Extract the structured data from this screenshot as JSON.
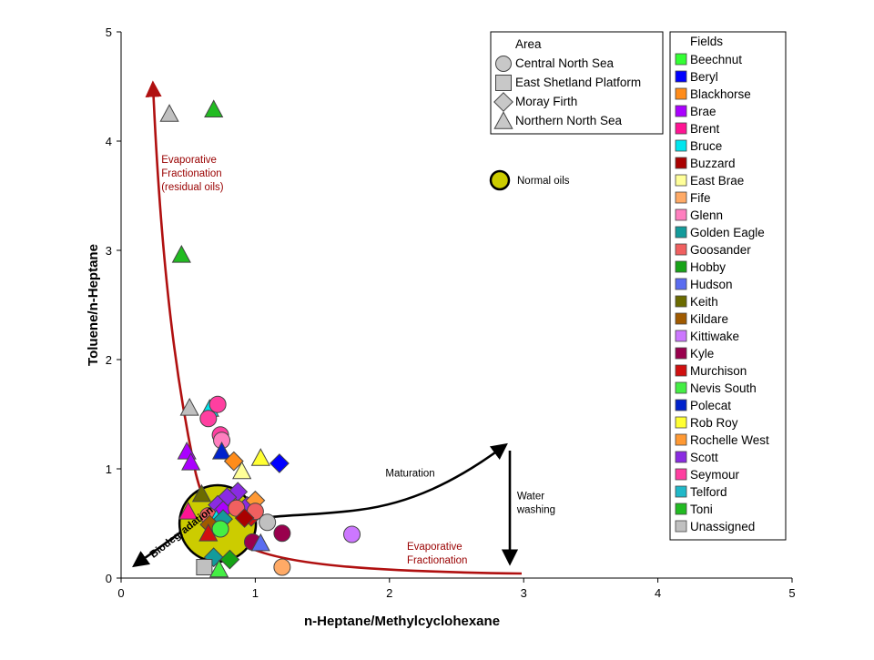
{
  "chart_data": {
    "type": "scatter",
    "xlabel": "n-Heptane/Methylcyclohexane",
    "ylabel": "Toluene/n-Heptane",
    "xlim": [
      0,
      5
    ],
    "ylim": [
      0,
      5
    ],
    "xticks": [
      "0",
      "1",
      "2",
      "3",
      "4",
      "5"
    ],
    "yticks": [
      "0",
      "1",
      "2",
      "3",
      "4",
      "5"
    ],
    "grid": false,
    "area_legend": {
      "title": "Area",
      "placement": "top-right",
      "entries": [
        {
          "label": "Central North Sea",
          "marker": "circle"
        },
        {
          "label": "East Shetland Platform",
          "marker": "square"
        },
        {
          "label": "Moray Firth",
          "marker": "diamond"
        },
        {
          "label": "Northern North Sea",
          "marker": "triangle"
        }
      ]
    },
    "field_legend": {
      "title": "Fields",
      "placement": "right",
      "entries": [
        {
          "label": "Beechnut",
          "color": "#33ff33"
        },
        {
          "label": "Beryl",
          "color": "#0000ff"
        },
        {
          "label": "Blackhorse",
          "color": "#ff8c1a"
        },
        {
          "label": "Brae",
          "color": "#aa00ff"
        },
        {
          "label": "Brent",
          "color": "#ff1493"
        },
        {
          "label": "Bruce",
          "color": "#00e5ee"
        },
        {
          "label": "Buzzard",
          "color": "#aa0000"
        },
        {
          "label": "East Brae",
          "color": "#ffff99"
        },
        {
          "label": "Fife",
          "color": "#ffaa66"
        },
        {
          "label": "Glenn",
          "color": "#ff7fbf"
        },
        {
          "label": "Golden Eagle",
          "color": "#139b9b"
        },
        {
          "label": "Goosander",
          "color": "#f06060"
        },
        {
          "label": "Hobby",
          "color": "#17a317"
        },
        {
          "label": "Hudson",
          "color": "#5a6cf0"
        },
        {
          "label": "Keith",
          "color": "#6b6b00"
        },
        {
          "label": "Kildare",
          "color": "#a05a00"
        },
        {
          "label": "Kittiwake",
          "color": "#cc77ff"
        },
        {
          "label": "Kyle",
          "color": "#99004d"
        },
        {
          "label": "Murchison",
          "color": "#d01010"
        },
        {
          "label": "Nevis South",
          "color": "#44ee44"
        },
        {
          "label": "Polecat",
          "color": "#0022cc"
        },
        {
          "label": "Rob Roy",
          "color": "#ffff33"
        },
        {
          "label": "Rochelle West",
          "color": "#ff9933"
        },
        {
          "label": "Scott",
          "color": "#8a2be2"
        },
        {
          "label": "Seymour",
          "color": "#ff3fa0"
        },
        {
          "label": "Telford",
          "color": "#20b8c8"
        },
        {
          "label": "Toni",
          "color": "#22bb22"
        },
        {
          "label": "Unassigned",
          "color": "#c0c0c0"
        }
      ]
    },
    "normal_oils": {
      "label": "Normal oils",
      "x": 0.72,
      "y": 0.5,
      "color": "#cccc00"
    },
    "annotations": [
      {
        "text": [
          "Evaporative",
          "Fractionation",
          "(residual oils)"
        ],
        "x": 0.3,
        "y": 3.8,
        "color": "#990000"
      },
      {
        "text": [
          "Evaporative",
          "Fractionation"
        ],
        "x": 2.13,
        "y": 0.26,
        "color": "#990000"
      },
      {
        "text": [
          "Maturation"
        ],
        "x": 1.97,
        "y": 0.93,
        "color": "#000000"
      },
      {
        "text": [
          "Water",
          "washing"
        ],
        "x": 2.95,
        "y": 0.72,
        "color": "#000000"
      },
      {
        "text": [
          "Biodegradation"
        ],
        "x": 0.24,
        "y": 0.18,
        "color": "#000000",
        "rotate": -38,
        "bold": true
      }
    ],
    "points": [
      {
        "x": 0.36,
        "y": 4.25,
        "marker": "triangle",
        "field": "Unassigned"
      },
      {
        "x": 0.69,
        "y": 4.29,
        "marker": "triangle",
        "field": "Toni"
      },
      {
        "x": 0.45,
        "y": 2.96,
        "marker": "triangle",
        "field": "Toni"
      },
      {
        "x": 0.51,
        "y": 1.56,
        "marker": "triangle",
        "field": "Unassigned"
      },
      {
        "x": 0.66,
        "y": 1.55,
        "marker": "triangle",
        "field": "Bruce"
      },
      {
        "x": 0.72,
        "y": 1.59,
        "marker": "circle",
        "field": "Seymour"
      },
      {
        "x": 0.65,
        "y": 1.46,
        "marker": "circle",
        "field": "Seymour"
      },
      {
        "x": 0.74,
        "y": 1.31,
        "marker": "circle",
        "field": "Seymour"
      },
      {
        "x": 0.75,
        "y": 1.26,
        "marker": "circle",
        "field": "Glenn"
      },
      {
        "x": 0.49,
        "y": 1.16,
        "marker": "triangle",
        "field": "Brae"
      },
      {
        "x": 0.52,
        "y": 1.06,
        "marker": "triangle",
        "field": "Brae"
      },
      {
        "x": 0.75,
        "y": 1.16,
        "marker": "triangle",
        "field": "Polecat"
      },
      {
        "x": 0.84,
        "y": 1.07,
        "marker": "diamond",
        "field": "Blackhorse"
      },
      {
        "x": 1.04,
        "y": 1.1,
        "marker": "triangle",
        "field": "Rob Roy"
      },
      {
        "x": 0.9,
        "y": 0.98,
        "marker": "triangle",
        "field": "East Brae"
      },
      {
        "x": 1.18,
        "y": 1.05,
        "marker": "diamond",
        "field": "Beryl"
      },
      {
        "x": 0.6,
        "y": 0.77,
        "marker": "triangle",
        "field": "Keith"
      },
      {
        "x": 0.87,
        "y": 0.79,
        "marker": "diamond",
        "field": "Scott"
      },
      {
        "x": 0.79,
        "y": 0.74,
        "marker": "diamond",
        "field": "Scott"
      },
      {
        "x": 0.72,
        "y": 0.67,
        "marker": "diamond",
        "field": "Scott"
      },
      {
        "x": 0.76,
        "y": 0.62,
        "marker": "diamond",
        "field": "Brae"
      },
      {
        "x": 0.94,
        "y": 0.66,
        "marker": "diamond",
        "field": "Scott"
      },
      {
        "x": 1.0,
        "y": 0.71,
        "marker": "diamond",
        "field": "Rochelle West"
      },
      {
        "x": 0.5,
        "y": 0.61,
        "marker": "triangle",
        "field": "Brent"
      },
      {
        "x": 0.65,
        "y": 0.57,
        "marker": "circle",
        "field": "Goosander"
      },
      {
        "x": 0.71,
        "y": 0.54,
        "marker": "triangle",
        "field": "Bruce"
      },
      {
        "x": 0.76,
        "y": 0.54,
        "marker": "diamond",
        "field": "Golden Eagle"
      },
      {
        "x": 0.86,
        "y": 0.64,
        "marker": "circle",
        "field": "Goosander"
      },
      {
        "x": 0.97,
        "y": 0.56,
        "marker": "diamond",
        "field": "Murchison"
      },
      {
        "x": 1.0,
        "y": 0.61,
        "marker": "circle",
        "field": "Goosander"
      },
      {
        "x": 0.92,
        "y": 0.55,
        "marker": "diamond",
        "field": "Buzzard"
      },
      {
        "x": 1.09,
        "y": 0.51,
        "marker": "circle",
        "field": "Unassigned"
      },
      {
        "x": 1.2,
        "y": 0.41,
        "marker": "circle",
        "field": "Kyle"
      },
      {
        "x": 1.72,
        "y": 0.4,
        "marker": "circle",
        "field": "Kittiwake"
      },
      {
        "x": 0.66,
        "y": 0.49,
        "marker": "diamond",
        "field": "Kildare"
      },
      {
        "x": 0.74,
        "y": 0.45,
        "marker": "circle",
        "field": "Nevis South"
      },
      {
        "x": 0.65,
        "y": 0.41,
        "marker": "triangle",
        "field": "Murchison"
      },
      {
        "x": 0.98,
        "y": 0.33,
        "marker": "circle",
        "field": "Kyle"
      },
      {
        "x": 1.04,
        "y": 0.32,
        "marker": "triangle",
        "field": "Hudson"
      },
      {
        "x": 0.69,
        "y": 0.19,
        "marker": "diamond",
        "field": "Golden Eagle"
      },
      {
        "x": 0.81,
        "y": 0.17,
        "marker": "diamond",
        "field": "Hobby"
      },
      {
        "x": 0.62,
        "y": 0.1,
        "marker": "square",
        "field": "Unassigned"
      },
      {
        "x": 0.73,
        "y": 0.08,
        "marker": "triangle",
        "field": "Nevis South"
      },
      {
        "x": 1.2,
        "y": 0.1,
        "marker": "circle",
        "field": "Fife"
      }
    ]
  }
}
